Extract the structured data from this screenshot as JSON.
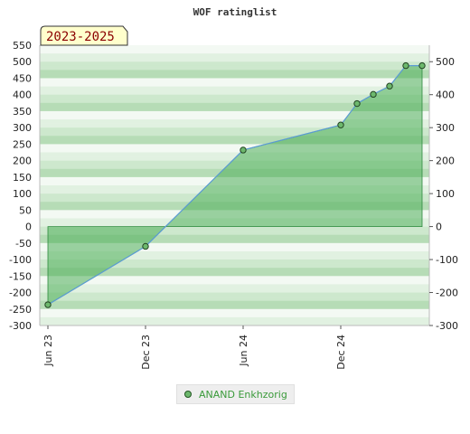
{
  "chart_data": {
    "type": "area",
    "title": "WOF ratinglist",
    "badge": "2023-2025",
    "x_tick_labels": [
      "Jun 23",
      "Dec 23",
      "Jun 24",
      "Dec 24"
    ],
    "y_ticks_left": [
      550,
      500,
      450,
      400,
      350,
      300,
      250,
      200,
      150,
      100,
      50,
      0,
      -50,
      -100,
      -150,
      -200,
      -250,
      -300
    ],
    "y_ticks_right": [
      500,
      400,
      300,
      200,
      100,
      0,
      -100,
      -200,
      -300
    ],
    "ylim": [
      -300,
      550
    ],
    "series": [
      {
        "name": "ANAND Enkhzorig",
        "color": "#6db86d",
        "points": [
          {
            "x": "2023-06",
            "y": -237
          },
          {
            "x": "2023-12",
            "y": -60
          },
          {
            "x": "2024-06",
            "y": 232
          },
          {
            "x": "2024-12",
            "y": 308
          },
          {
            "x": "2025-01",
            "y": 373
          },
          {
            "x": "2025-02",
            "y": 401
          },
          {
            "x": "2025-03",
            "y": 426
          },
          {
            "x": "2025-04",
            "y": 488
          },
          {
            "x": "2025-05",
            "y": 488
          }
        ]
      }
    ]
  },
  "legend": {
    "label": "ANAND Enkhzorig"
  }
}
